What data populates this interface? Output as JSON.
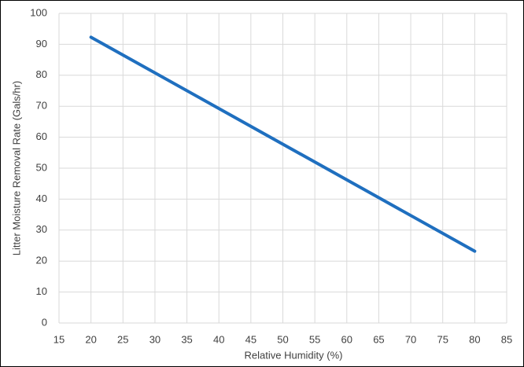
{
  "chart_data": {
    "type": "line",
    "x_label": "Relative Humidity (%)",
    "y_label": "Litter Moisture Removal Rate (Gals/hr)",
    "x": [
      20,
      80
    ],
    "series": [
      {
        "color": "#1f6fbf",
        "values": [
          92.3,
          23.2
        ]
      }
    ],
    "xlim": [
      15,
      85
    ],
    "xticks": [
      15,
      20,
      25,
      30,
      35,
      40,
      45,
      50,
      55,
      60,
      65,
      70,
      75,
      80,
      85
    ],
    "ylim": [
      0,
      100
    ],
    "yticks": [
      0,
      10,
      20,
      30,
      40,
      50,
      60,
      70,
      80,
      90,
      100
    ],
    "grid": true
  }
}
